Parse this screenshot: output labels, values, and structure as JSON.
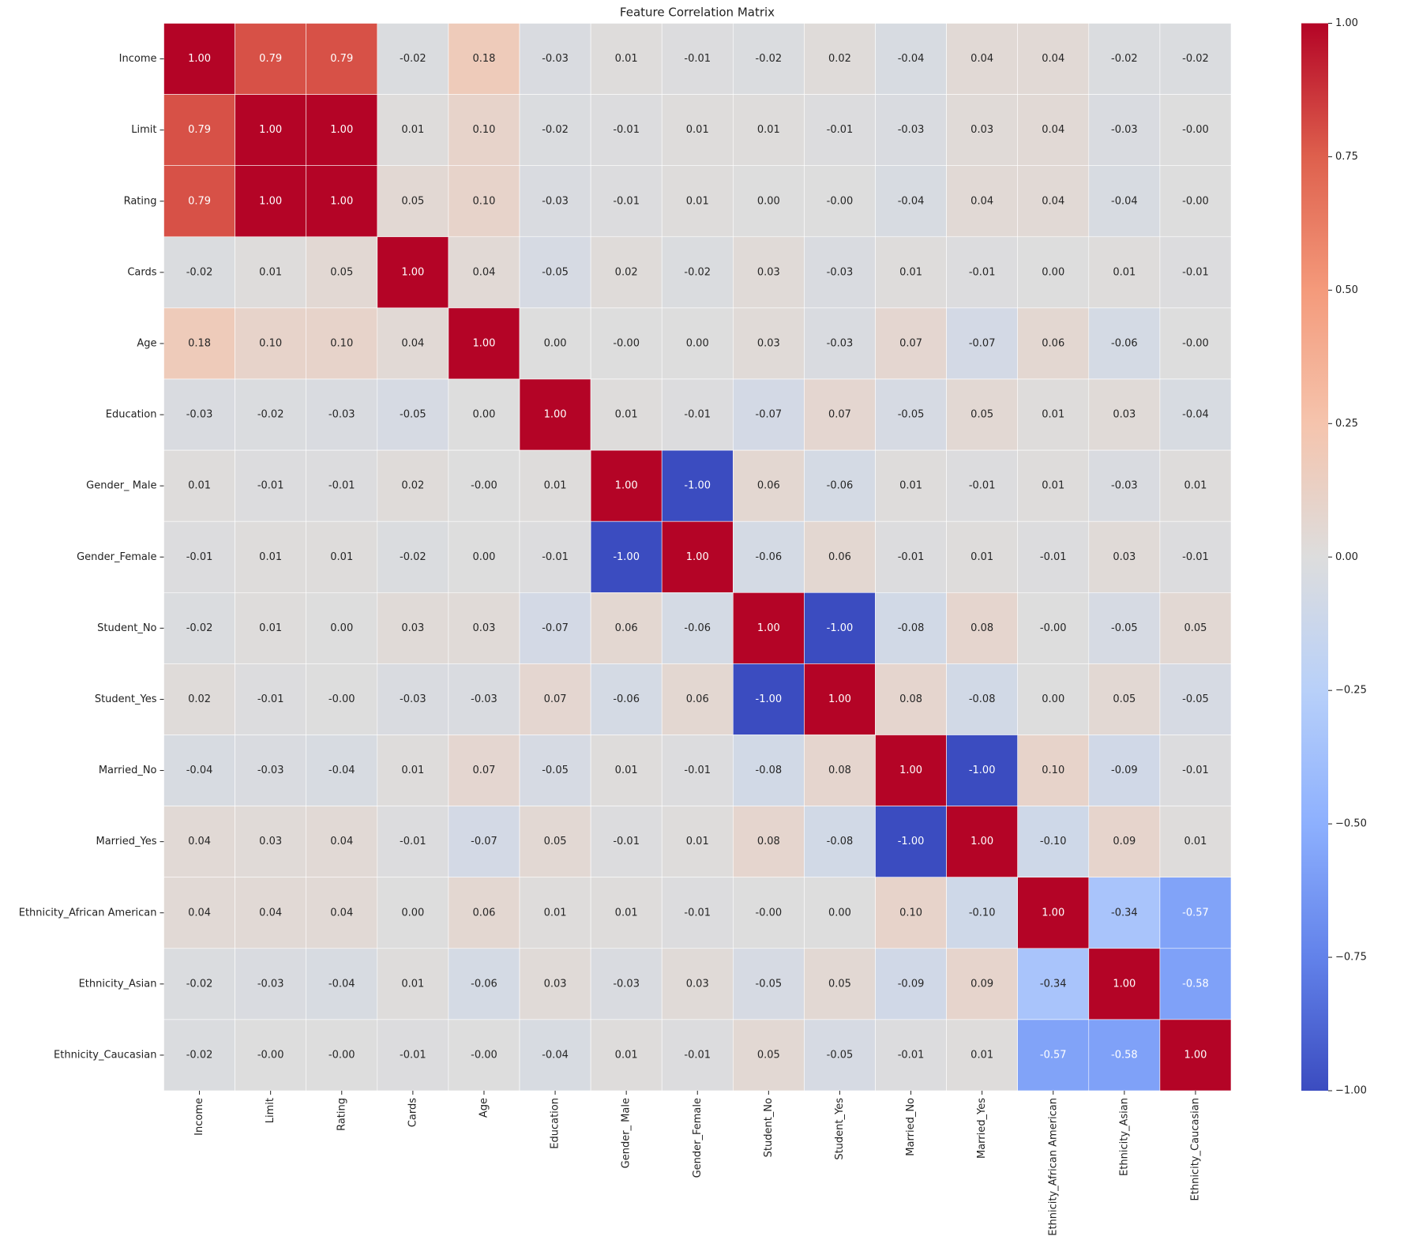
{
  "chart_data": {
    "type": "heatmap",
    "title": "Feature Correlation Matrix",
    "categories": [
      "Income",
      "Limit",
      "Rating",
      "Cards",
      "Age",
      "Education",
      "Gender_ Male",
      "Gender_Female",
      "Student_No",
      "Student_Yes",
      "Married_No",
      "Married_Yes",
      "Ethnicity_African American",
      "Ethnicity_Asian",
      "Ethnicity_Caucasian"
    ],
    "values": [
      [
        1,
        0.79,
        0.79,
        -0.02,
        0.18,
        -0.03,
        0.01,
        -0.01,
        -0.02,
        0.02,
        -0.04,
        0.04,
        0.04,
        -0.02,
        -0.02
      ],
      [
        0.79,
        1,
        1,
        0.01,
        0.1,
        -0.02,
        -0.01,
        0.01,
        0.01,
        -0.01,
        -0.03,
        0.03,
        0.04,
        -0.03,
        0
      ],
      [
        0.79,
        1,
        1,
        0.05,
        0.1,
        -0.03,
        -0.01,
        0.01,
        0,
        0,
        -0.04,
        0.04,
        0.04,
        -0.04,
        0
      ],
      [
        -0.02,
        0.01,
        0.05,
        1,
        0.04,
        -0.05,
        0.02,
        -0.02,
        0.03,
        -0.03,
        0.01,
        -0.01,
        0,
        0.01,
        -0.01
      ],
      [
        0.18,
        0.1,
        0.1,
        0.04,
        1,
        0,
        0,
        0,
        0.03,
        -0.03,
        0.07,
        -0.07,
        0.06,
        -0.06,
        0
      ],
      [
        -0.03,
        -0.02,
        -0.03,
        -0.05,
        0,
        1,
        0.01,
        -0.01,
        -0.07,
        0.07,
        -0.05,
        0.05,
        0.01,
        0.03,
        -0.04
      ],
      [
        0.01,
        -0.01,
        -0.01,
        0.02,
        0,
        0.01,
        1,
        -1,
        0.06,
        -0.06,
        0.01,
        -0.01,
        0.01,
        -0.03,
        0.01
      ],
      [
        -0.01,
        0.01,
        0.01,
        -0.02,
        0,
        -0.01,
        -1,
        1,
        -0.06,
        0.06,
        -0.01,
        0.01,
        -0.01,
        0.03,
        -0.01
      ],
      [
        -0.02,
        0.01,
        0,
        0.03,
        0.03,
        -0.07,
        0.06,
        -0.06,
        1,
        -1,
        -0.08,
        0.08,
        0,
        -0.05,
        0.05
      ],
      [
        0.02,
        -0.01,
        0,
        -0.03,
        -0.03,
        0.07,
        -0.06,
        0.06,
        -1,
        1,
        0.08,
        -0.08,
        0,
        0.05,
        -0.05
      ],
      [
        -0.04,
        -0.03,
        -0.04,
        0.01,
        0.07,
        -0.05,
        0.01,
        -0.01,
        -0.08,
        0.08,
        1,
        -1,
        0.1,
        -0.09,
        -0.01
      ],
      [
        0.04,
        0.03,
        0.04,
        -0.01,
        -0.07,
        0.05,
        -0.01,
        0.01,
        0.08,
        -0.08,
        -1,
        1,
        -0.1,
        0.09,
        0.01
      ],
      [
        0.04,
        0.04,
        0.04,
        0,
        0.06,
        0.01,
        0.01,
        -0.01,
        0,
        0,
        0.1,
        -0.1,
        1,
        -0.34,
        -0.57
      ],
      [
        -0.02,
        -0.03,
        -0.04,
        0.01,
        -0.06,
        0.03,
        -0.03,
        0.03,
        -0.05,
        0.05,
        -0.09,
        0.09,
        -0.34,
        1,
        -0.58
      ],
      [
        -0.02,
        0,
        0,
        -0.01,
        0,
        -0.04,
        0.01,
        -0.01,
        0.05,
        -0.05,
        -0.01,
        0.01,
        -0.57,
        -0.58,
        1
      ]
    ],
    "value_labels": [
      [
        "1.00",
        "0.79",
        "0.79",
        "-0.02",
        "0.18",
        "-0.03",
        "0.01",
        "-0.01",
        "-0.02",
        "0.02",
        "-0.04",
        "0.04",
        "0.04",
        "-0.02",
        "-0.02"
      ],
      [
        "0.79",
        "1.00",
        "1.00",
        "0.01",
        "0.10",
        "-0.02",
        "-0.01",
        "0.01",
        "0.01",
        "-0.01",
        "-0.03",
        "0.03",
        "0.04",
        "-0.03",
        "-0.00"
      ],
      [
        "0.79",
        "1.00",
        "1.00",
        "0.05",
        "0.10",
        "-0.03",
        "-0.01",
        "0.01",
        "0.00",
        "-0.00",
        "-0.04",
        "0.04",
        "0.04",
        "-0.04",
        "-0.00"
      ],
      [
        "-0.02",
        "0.01",
        "0.05",
        "1.00",
        "0.04",
        "-0.05",
        "0.02",
        "-0.02",
        "0.03",
        "-0.03",
        "0.01",
        "-0.01",
        "0.00",
        "0.01",
        "-0.01"
      ],
      [
        "0.18",
        "0.10",
        "0.10",
        "0.04",
        "1.00",
        "0.00",
        "-0.00",
        "0.00",
        "0.03",
        "-0.03",
        "0.07",
        "-0.07",
        "0.06",
        "-0.06",
        "-0.00"
      ],
      [
        "-0.03",
        "-0.02",
        "-0.03",
        "-0.05",
        "0.00",
        "1.00",
        "0.01",
        "-0.01",
        "-0.07",
        "0.07",
        "-0.05",
        "0.05",
        "0.01",
        "0.03",
        "-0.04"
      ],
      [
        "0.01",
        "-0.01",
        "-0.01",
        "0.02",
        "-0.00",
        "0.01",
        "1.00",
        "-1.00",
        "0.06",
        "-0.06",
        "0.01",
        "-0.01",
        "0.01",
        "-0.03",
        "0.01"
      ],
      [
        "-0.01",
        "0.01",
        "0.01",
        "-0.02",
        "0.00",
        "-0.01",
        "-1.00",
        "1.00",
        "-0.06",
        "0.06",
        "-0.01",
        "0.01",
        "-0.01",
        "0.03",
        "-0.01"
      ],
      [
        "-0.02",
        "0.01",
        "0.00",
        "0.03",
        "0.03",
        "-0.07",
        "0.06",
        "-0.06",
        "1.00",
        "-1.00",
        "-0.08",
        "0.08",
        "-0.00",
        "-0.05",
        "0.05"
      ],
      [
        "0.02",
        "-0.01",
        "-0.00",
        "-0.03",
        "-0.03",
        "0.07",
        "-0.06",
        "0.06",
        "-1.00",
        "1.00",
        "0.08",
        "-0.08",
        "0.00",
        "0.05",
        "-0.05"
      ],
      [
        "-0.04",
        "-0.03",
        "-0.04",
        "0.01",
        "0.07",
        "-0.05",
        "0.01",
        "-0.01",
        "-0.08",
        "0.08",
        "1.00",
        "-1.00",
        "0.10",
        "-0.09",
        "-0.01"
      ],
      [
        "0.04",
        "0.03",
        "0.04",
        "-0.01",
        "-0.07",
        "0.05",
        "-0.01",
        "0.01",
        "0.08",
        "-0.08",
        "-1.00",
        "1.00",
        "-0.10",
        "0.09",
        "0.01"
      ],
      [
        "0.04",
        "0.04",
        "0.04",
        "0.00",
        "0.06",
        "0.01",
        "0.01",
        "-0.01",
        "-0.00",
        "0.00",
        "0.10",
        "-0.10",
        "1.00",
        "-0.34",
        "-0.57"
      ],
      [
        "-0.02",
        "-0.03",
        "-0.04",
        "0.01",
        "-0.06",
        "0.03",
        "-0.03",
        "0.03",
        "-0.05",
        "0.05",
        "-0.09",
        "0.09",
        "-0.34",
        "1.00",
        "-0.58"
      ],
      [
        "-0.02",
        "-0.00",
        "-0.00",
        "-0.01",
        "-0.00",
        "-0.04",
        "0.01",
        "-0.01",
        "0.05",
        "-0.05",
        "-0.01",
        "0.01",
        "-0.57",
        "-0.58",
        "1.00"
      ]
    ],
    "colormap": "coolwarm",
    "clim": [
      -1,
      1
    ],
    "cticks": [
      {
        "value": 1,
        "label": "1.00"
      },
      {
        "value": 0.75,
        "label": "0.75"
      },
      {
        "value": 0.5,
        "label": "0.50"
      },
      {
        "value": 0.25,
        "label": "0.25"
      },
      {
        "value": 0,
        "label": "0.00"
      },
      {
        "value": -0.25,
        "label": "−0.25"
      },
      {
        "value": -0.5,
        "label": "−0.50"
      },
      {
        "value": -0.75,
        "label": "−0.75"
      },
      {
        "value": -1,
        "label": "−1.00"
      }
    ]
  }
}
